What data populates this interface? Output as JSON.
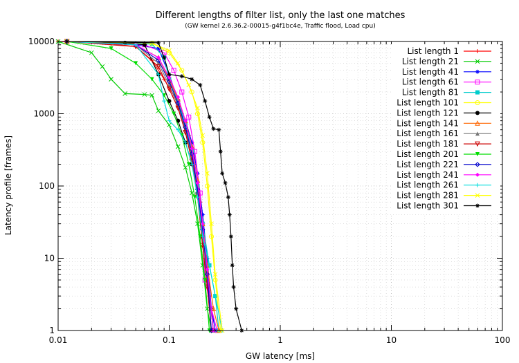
{
  "chart_data": {
    "type": "line",
    "title": "Different lengths of filter list, only the last one matches",
    "subtitle": "(GW kernel 2.6.36.2-00015-g4f1bc4e, Traffic flood, Load cpu)",
    "xlabel": "GW latency [ms]",
    "ylabel": "Latency profile [frames]",
    "xscale": "log",
    "yscale": "log",
    "xlim": [
      0.01,
      100
    ],
    "ylim": [
      1,
      10000
    ],
    "xticks": [
      "0.01",
      "0.1",
      "1",
      "10",
      "100"
    ],
    "yticks": [
      "1",
      "10",
      "100",
      "1000",
      "10000"
    ],
    "grid": true,
    "legend_position": "top-right",
    "series": [
      {
        "name": "List length 1",
        "color": "#ff0000",
        "marker": "plus",
        "points": [
          [
            0.01,
            10000
          ],
          [
            0.03,
            9300
          ],
          [
            0.05,
            8500
          ],
          [
            0.07,
            5500
          ],
          [
            0.09,
            3000
          ],
          [
            0.11,
            1800
          ],
          [
            0.13,
            1000
          ],
          [
            0.15,
            500
          ],
          [
            0.17,
            200
          ],
          [
            0.19,
            60
          ],
          [
            0.21,
            10
          ],
          [
            0.23,
            3
          ],
          [
            0.25,
            1
          ]
        ]
      },
      {
        "name": "List length 21",
        "color": "#00cc00",
        "marker": "cross",
        "points": [
          [
            0.01,
            10000
          ],
          [
            0.02,
            7000
          ],
          [
            0.025,
            4500
          ],
          [
            0.03,
            3000
          ],
          [
            0.04,
            1900
          ],
          [
            0.06,
            1850
          ],
          [
            0.07,
            1800
          ],
          [
            0.08,
            1100
          ],
          [
            0.1,
            700
          ],
          [
            0.12,
            350
          ],
          [
            0.14,
            180
          ],
          [
            0.16,
            80
          ],
          [
            0.18,
            30
          ],
          [
            0.2,
            8
          ],
          [
            0.22,
            2
          ],
          [
            0.24,
            1
          ]
        ]
      },
      {
        "name": "List length 41",
        "color": "#0000ff",
        "marker": "star",
        "points": [
          [
            0.012,
            10000
          ],
          [
            0.05,
            9000
          ],
          [
            0.08,
            8000
          ],
          [
            0.1,
            3500
          ],
          [
            0.12,
            1500
          ],
          [
            0.14,
            800
          ],
          [
            0.16,
            400
          ],
          [
            0.18,
            150
          ],
          [
            0.2,
            40
          ],
          [
            0.22,
            10
          ],
          [
            0.24,
            2
          ],
          [
            0.26,
            1
          ]
        ]
      },
      {
        "name": "List length 61",
        "color": "#ff00ff",
        "marker": "square",
        "points": [
          [
            0.012,
            10000
          ],
          [
            0.06,
            9000
          ],
          [
            0.09,
            7000
          ],
          [
            0.11,
            4000
          ],
          [
            0.13,
            2000
          ],
          [
            0.15,
            900
          ],
          [
            0.17,
            300
          ],
          [
            0.19,
            80
          ],
          [
            0.2,
            20
          ],
          [
            0.21,
            5
          ],
          [
            0.24,
            2
          ],
          [
            0.27,
            1
          ]
        ]
      },
      {
        "name": "List length 81",
        "color": "#00cccc",
        "marker": "fsquare",
        "points": [
          [
            0.012,
            10000
          ],
          [
            0.07,
            9200
          ],
          [
            0.09,
            6000
          ],
          [
            0.1,
            3000
          ],
          [
            0.12,
            1500
          ],
          [
            0.14,
            700
          ],
          [
            0.16,
            300
          ],
          [
            0.18,
            100
          ],
          [
            0.2,
            30
          ],
          [
            0.23,
            8
          ],
          [
            0.26,
            3
          ],
          [
            0.28,
            1
          ]
        ]
      },
      {
        "name": "List length 101",
        "color": "#ffff00",
        "marker": "circle",
        "points": [
          [
            0.012,
            10000
          ],
          [
            0.07,
            9500
          ],
          [
            0.1,
            7000
          ],
          [
            0.13,
            4000
          ],
          [
            0.16,
            2000
          ],
          [
            0.18,
            1000
          ],
          [
            0.2,
            400
          ],
          [
            0.22,
            100
          ],
          [
            0.24,
            20
          ],
          [
            0.26,
            5
          ],
          [
            0.29,
            1
          ]
        ]
      },
      {
        "name": "List length 121",
        "color": "#000000",
        "marker": "fcircle",
        "points": [
          [
            0.012,
            10000
          ],
          [
            0.04,
            9600
          ],
          [
            0.06,
            9000
          ],
          [
            0.08,
            3500
          ],
          [
            0.1,
            1500
          ],
          [
            0.12,
            800
          ],
          [
            0.14,
            400
          ],
          [
            0.16,
            200
          ],
          [
            0.18,
            80
          ],
          [
            0.2,
            20
          ],
          [
            0.22,
            6
          ],
          [
            0.25,
            1
          ]
        ]
      },
      {
        "name": "List length 141",
        "color": "#ff6600",
        "marker": "triangle",
        "points": [
          [
            0.012,
            10000
          ],
          [
            0.05,
            9000
          ],
          [
            0.08,
            6000
          ],
          [
            0.1,
            3000
          ],
          [
            0.12,
            1600
          ],
          [
            0.14,
            800
          ],
          [
            0.16,
            350
          ],
          [
            0.18,
            120
          ],
          [
            0.2,
            30
          ],
          [
            0.22,
            8
          ],
          [
            0.25,
            2
          ],
          [
            0.28,
            1
          ]
        ]
      },
      {
        "name": "List length 161",
        "color": "#777777",
        "marker": "ftriangle",
        "points": [
          [
            0.012,
            10000
          ],
          [
            0.05,
            9000
          ],
          [
            0.08,
            5000
          ],
          [
            0.1,
            2500
          ],
          [
            0.12,
            1300
          ],
          [
            0.14,
            600
          ],
          [
            0.16,
            250
          ],
          [
            0.18,
            80
          ],
          [
            0.2,
            20
          ],
          [
            0.22,
            5
          ],
          [
            0.25,
            1
          ]
        ]
      },
      {
        "name": "List length 181",
        "color": "#cc0000",
        "marker": "itriangle",
        "points": [
          [
            0.012,
            10000
          ],
          [
            0.05,
            8500
          ],
          [
            0.08,
            4500
          ],
          [
            0.1,
            2200
          ],
          [
            0.12,
            1200
          ],
          [
            0.14,
            550
          ],
          [
            0.16,
            220
          ],
          [
            0.18,
            70
          ],
          [
            0.2,
            15
          ],
          [
            0.22,
            4
          ],
          [
            0.24,
            1
          ]
        ]
      },
      {
        "name": "List length 201",
        "color": "#00dd00",
        "marker": "fitriangle",
        "points": [
          [
            0.012,
            10000
          ],
          [
            0.03,
            8000
          ],
          [
            0.05,
            5000
          ],
          [
            0.07,
            3000
          ],
          [
            0.09,
            1800
          ],
          [
            0.11,
            1000
          ],
          [
            0.13,
            500
          ],
          [
            0.15,
            200
          ],
          [
            0.17,
            70
          ],
          [
            0.19,
            20
          ],
          [
            0.21,
            5
          ],
          [
            0.23,
            1
          ]
        ]
      },
      {
        "name": "List length 221",
        "color": "#0000cc",
        "marker": "diamond",
        "points": [
          [
            0.012,
            10000
          ],
          [
            0.05,
            9000
          ],
          [
            0.08,
            5500
          ],
          [
            0.1,
            2800
          ],
          [
            0.12,
            1400
          ],
          [
            0.14,
            650
          ],
          [
            0.16,
            280
          ],
          [
            0.18,
            90
          ],
          [
            0.2,
            25
          ],
          [
            0.22,
            6
          ],
          [
            0.24,
            1
          ]
        ]
      },
      {
        "name": "List length 241",
        "color": "#ff00ff",
        "marker": "fdiamond",
        "points": [
          [
            0.012,
            10000
          ],
          [
            0.05,
            9000
          ],
          [
            0.08,
            6000
          ],
          [
            0.1,
            3200
          ],
          [
            0.12,
            1700
          ],
          [
            0.14,
            800
          ],
          [
            0.16,
            330
          ],
          [
            0.18,
            110
          ],
          [
            0.2,
            30
          ],
          [
            0.22,
            7
          ],
          [
            0.25,
            1
          ]
        ]
      },
      {
        "name": "List length 261",
        "color": "#00dddd",
        "marker": "plus",
        "points": [
          [
            0.012,
            10000
          ],
          [
            0.05,
            9000
          ],
          [
            0.08,
            3500
          ],
          [
            0.09,
            1500
          ],
          [
            0.1,
            800
          ],
          [
            0.12,
            600
          ],
          [
            0.14,
            400
          ],
          [
            0.16,
            200
          ],
          [
            0.18,
            70
          ],
          [
            0.2,
            20
          ],
          [
            0.23,
            8
          ],
          [
            0.26,
            3
          ],
          [
            0.3,
            1
          ]
        ]
      },
      {
        "name": "List length 281",
        "color": "#ffff00",
        "marker": "cross",
        "points": [
          [
            0.012,
            10000
          ],
          [
            0.07,
            9500
          ],
          [
            0.1,
            7500
          ],
          [
            0.12,
            5000
          ],
          [
            0.15,
            2500
          ],
          [
            0.18,
            1200
          ],
          [
            0.2,
            500
          ],
          [
            0.22,
            150
          ],
          [
            0.24,
            30
          ],
          [
            0.26,
            6
          ],
          [
            0.3,
            1
          ]
        ]
      },
      {
        "name": "List length 301",
        "color": "#000000",
        "marker": "star",
        "points": [
          [
            0.012,
            10000
          ],
          [
            0.08,
            9600
          ],
          [
            0.09,
            6000
          ],
          [
            0.1,
            3500
          ],
          [
            0.13,
            3300
          ],
          [
            0.16,
            3000
          ],
          [
            0.19,
            2500
          ],
          [
            0.21,
            1500
          ],
          [
            0.23,
            900
          ],
          [
            0.25,
            620
          ],
          [
            0.28,
            600
          ],
          [
            0.29,
            300
          ],
          [
            0.3,
            150
          ],
          [
            0.32,
            110
          ],
          [
            0.34,
            70
          ],
          [
            0.35,
            40
          ],
          [
            0.36,
            20
          ],
          [
            0.37,
            8
          ],
          [
            0.38,
            4
          ],
          [
            0.4,
            2
          ],
          [
            0.45,
            1
          ]
        ]
      }
    ]
  }
}
